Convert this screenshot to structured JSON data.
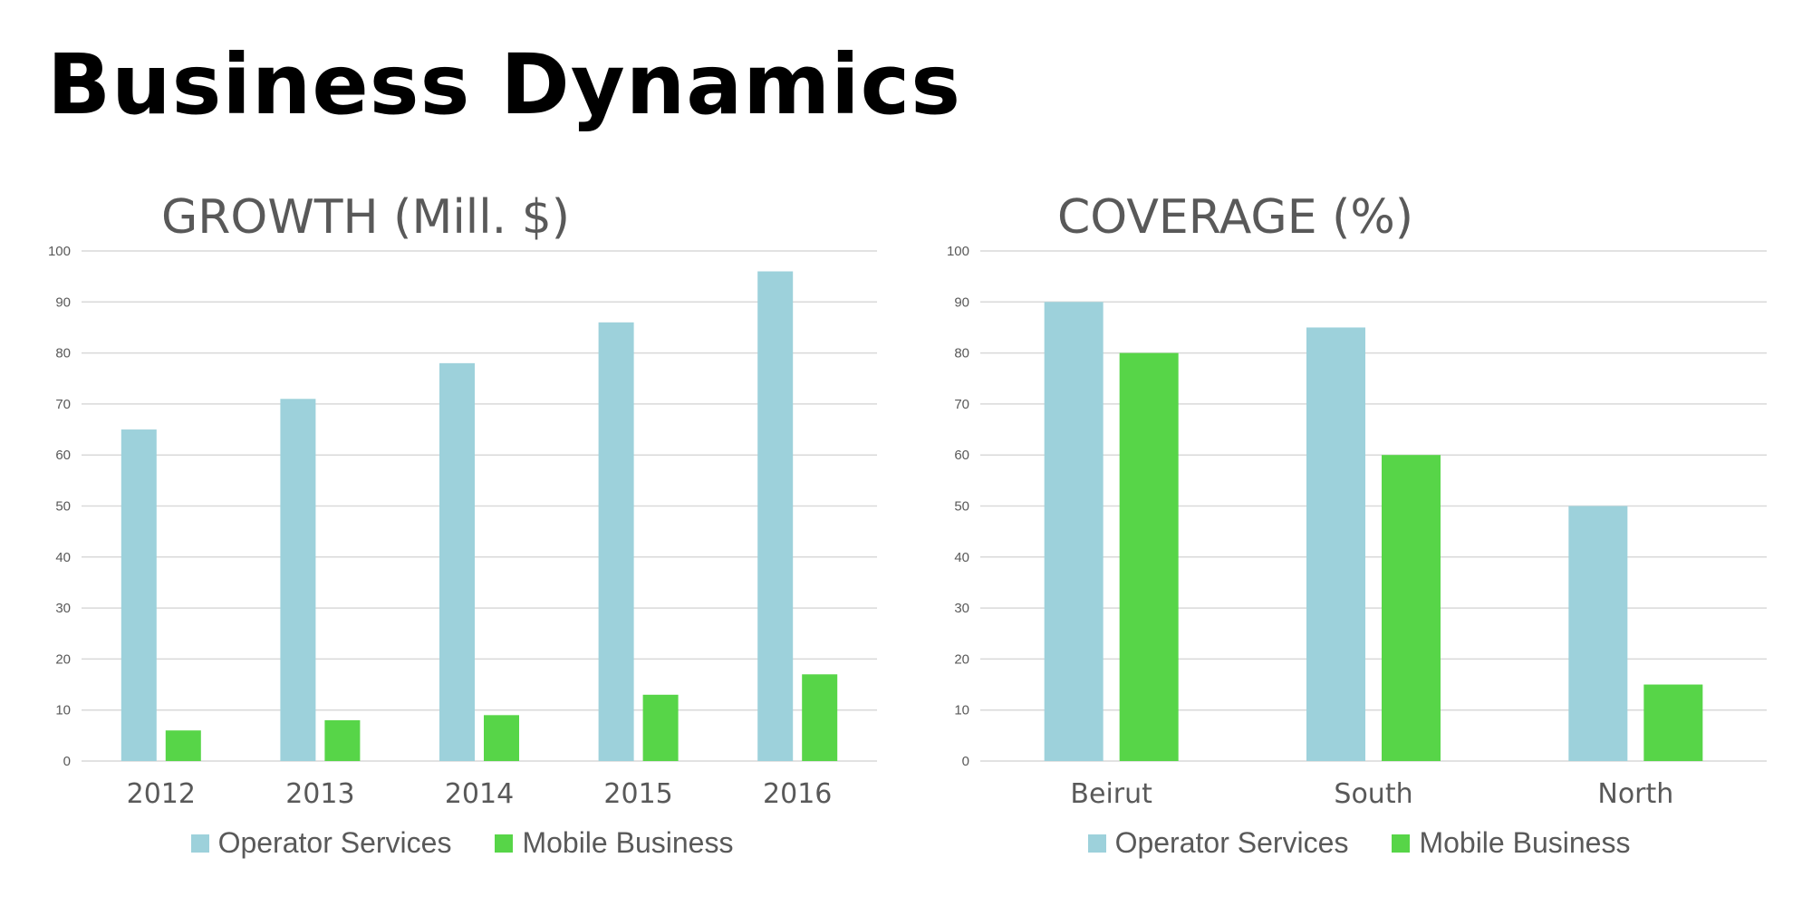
{
  "page": {
    "title": "Business Dynamics"
  },
  "colors": {
    "operator_services": "#9dd1db",
    "mobile_business": "#57d548",
    "grid": "#d9d9d9",
    "text": "#595959"
  },
  "chart_data": [
    {
      "id": "growth",
      "type": "bar",
      "title": "GROWTH (Mill. $)",
      "categories": [
        "2012",
        "2013",
        "2014",
        "2015",
        "2016"
      ],
      "series": [
        {
          "name": "Operator Services",
          "values": [
            65,
            71,
            78,
            86,
            96
          ]
        },
        {
          "name": "Mobile Business",
          "values": [
            6,
            8,
            9,
            13,
            17
          ]
        }
      ],
      "ylim": [
        0,
        100
      ],
      "yticks": [
        0,
        10,
        20,
        30,
        40,
        50,
        60,
        70,
        80,
        90,
        100
      ],
      "grid": true,
      "legend": "bottom"
    },
    {
      "id": "coverage",
      "type": "bar",
      "title": "COVERAGE (%)",
      "categories": [
        "Beirut",
        "South",
        "North"
      ],
      "series": [
        {
          "name": "Operator Services",
          "values": [
            90,
            85,
            50
          ]
        },
        {
          "name": "Mobile Business",
          "values": [
            80,
            60,
            15
          ]
        }
      ],
      "ylim": [
        0,
        100
      ],
      "yticks": [
        0,
        10,
        20,
        30,
        40,
        50,
        60,
        70,
        80,
        90,
        100
      ],
      "grid": true,
      "legend": "bottom"
    }
  ]
}
